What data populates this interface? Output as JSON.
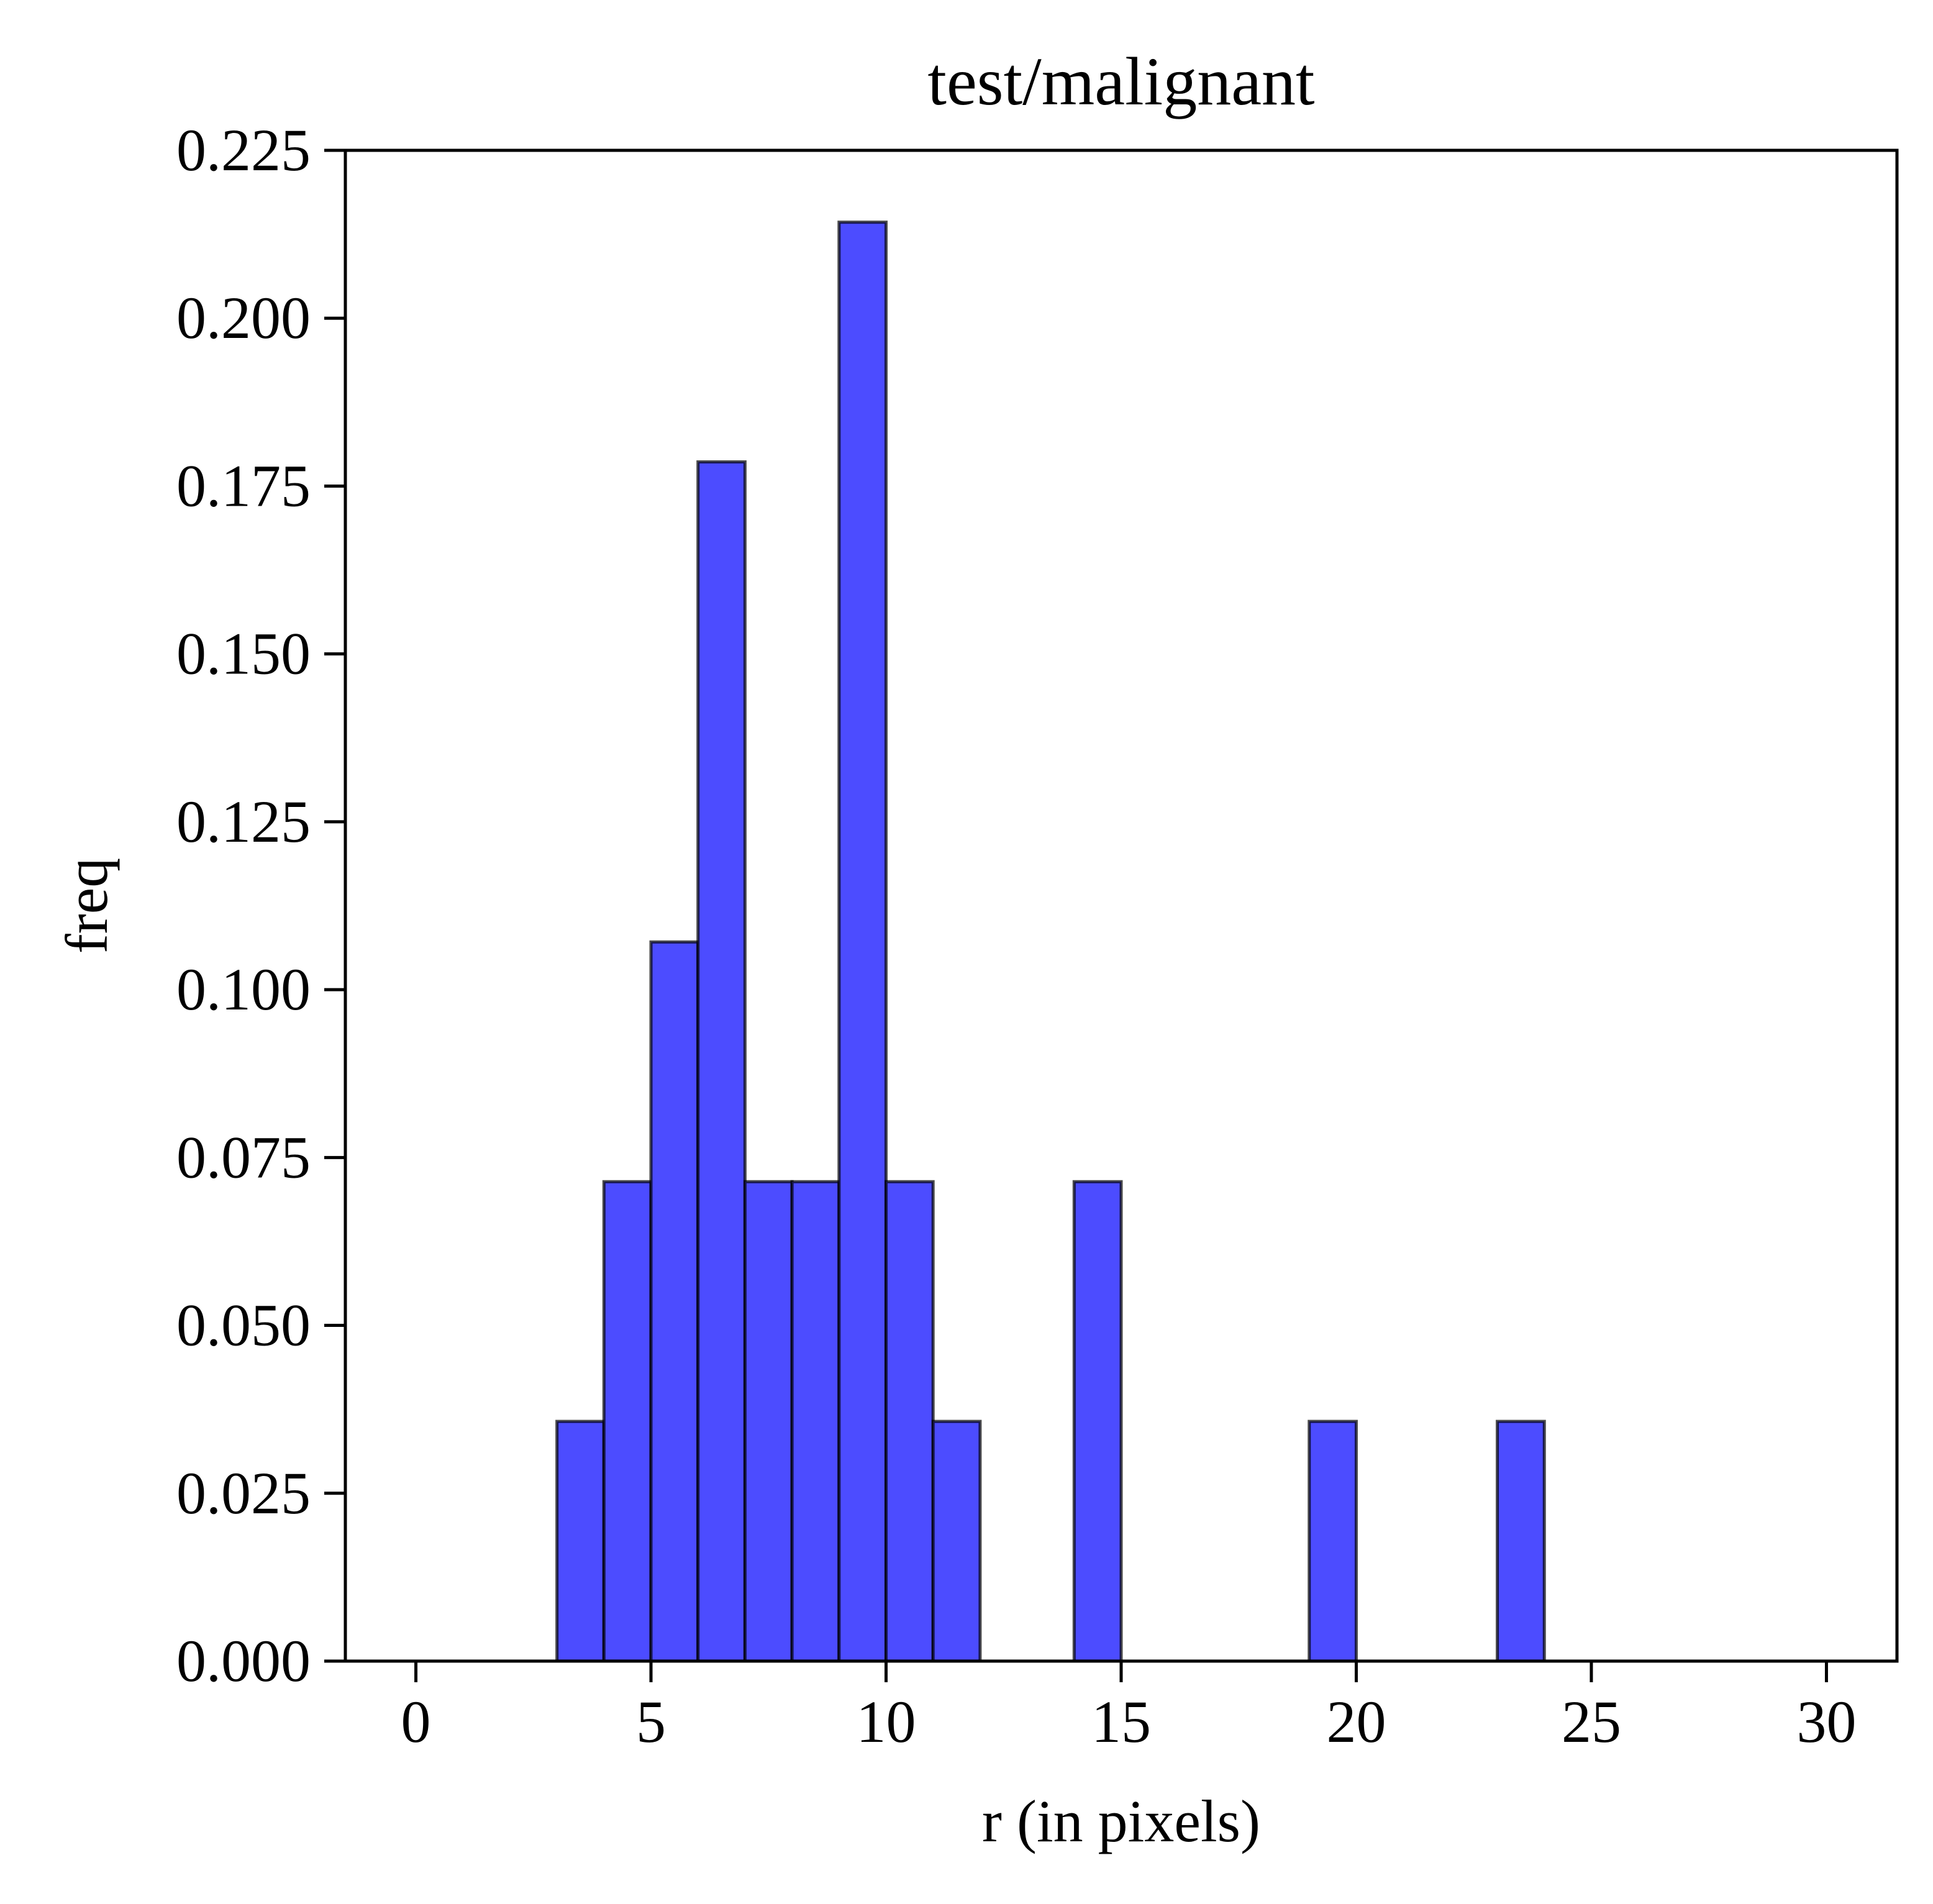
{
  "chart_data": {
    "type": "bar",
    "title": "test/malignant",
    "xlabel": "r (in pixels)",
    "ylabel": "freq",
    "xlim": [
      -1.5,
      31.5
    ],
    "ylim": [
      0,
      0.225
    ],
    "xticks": [
      0,
      5,
      10,
      15,
      20,
      25,
      30
    ],
    "yticks": [
      0.0,
      0.025,
      0.05,
      0.075,
      0.1,
      0.125,
      0.15,
      0.175,
      0.2,
      0.225
    ],
    "xtick_labels": [
      "0",
      "5",
      "10",
      "15",
      "20",
      "25",
      "30"
    ],
    "ytick_labels": [
      "0.000",
      "0.025",
      "0.050",
      "0.075",
      "0.100",
      "0.125",
      "0.150",
      "0.175",
      "0.200",
      "0.225"
    ],
    "bin_edges": [
      0,
      1,
      2,
      3,
      4,
      5,
      6,
      7,
      8,
      9,
      10,
      11,
      12,
      13,
      14,
      15,
      16,
      17,
      18,
      19,
      20,
      21,
      22,
      23,
      24,
      25,
      26,
      27,
      28,
      29,
      30
    ],
    "values": [
      0,
      0,
      0,
      0.0357,
      0.0714,
      0.1071,
      0.1786,
      0.0714,
      0.0714,
      0.2143,
      0.0714,
      0.0357,
      0,
      0,
      0.0714,
      0,
      0,
      0,
      0,
      0.0357,
      0,
      0,
      0,
      0.0357,
      0,
      0,
      0,
      0,
      0,
      0
    ],
    "bar_color": "#4c4cff",
    "edge_color": "#000000",
    "grid": false
  }
}
